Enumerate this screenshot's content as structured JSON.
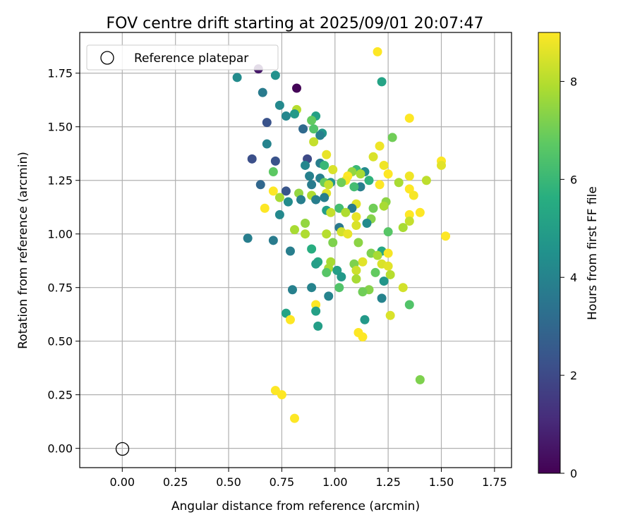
{
  "chart_data": {
    "type": "scatter",
    "title": "FOV centre drift starting at 2025/09/01 20:07:47",
    "xlabel": "Angular distance from reference (arcmin)",
    "ylabel": "Rotation from reference (arcmin)",
    "xlim": [
      -0.2,
      1.83
    ],
    "ylim": [
      -0.09,
      1.94
    ],
    "xticks": [
      "0.00",
      "0.25",
      "0.50",
      "0.75",
      "1.00",
      "1.25",
      "1.50",
      "1.75"
    ],
    "yticks": [
      "0.00",
      "0.25",
      "0.50",
      "0.75",
      "1.00",
      "1.25",
      "1.50",
      "1.75"
    ],
    "grid": true,
    "legend": {
      "placement": "top-left",
      "entries": [
        "Reference platepar"
      ]
    },
    "reference_point": {
      "x": 0.0,
      "y": 0.0,
      "label": "Reference platepar"
    },
    "colorbar": {
      "label": "Hours from first FF file",
      "min": 0,
      "max": 9,
      "ticks": [
        "0",
        "2",
        "4",
        "6",
        "8"
      ],
      "colormap": "viridis"
    },
    "colors": {
      "grid": "#b0b0b0",
      "axes": "#000000",
      "reference_marker": "#000000"
    },
    "points": [
      {
        "x": 1.2,
        "y": 1.85,
        "c": 9.0
      },
      {
        "x": 0.64,
        "y": 1.77,
        "c": 0.6
      },
      {
        "x": 0.72,
        "y": 1.74,
        "c": 4.5
      },
      {
        "x": 0.54,
        "y": 1.73,
        "c": 4.3
      },
      {
        "x": 1.22,
        "y": 1.71,
        "c": 5.2
      },
      {
        "x": 0.82,
        "y": 1.68,
        "c": 0.1
      },
      {
        "x": 0.66,
        "y": 1.66,
        "c": 3.7
      },
      {
        "x": 0.74,
        "y": 1.6,
        "c": 4.2
      },
      {
        "x": 0.82,
        "y": 1.58,
        "c": 8.0
      },
      {
        "x": 0.81,
        "y": 1.56,
        "c": 4.8
      },
      {
        "x": 0.77,
        "y": 1.55,
        "c": 4.1
      },
      {
        "x": 0.91,
        "y": 1.55,
        "c": 5.1
      },
      {
        "x": 1.35,
        "y": 1.54,
        "c": 9.0
      },
      {
        "x": 0.89,
        "y": 1.53,
        "c": 6.8
      },
      {
        "x": 0.68,
        "y": 1.52,
        "c": 2.3
      },
      {
        "x": 0.85,
        "y": 1.49,
        "c": 3.1
      },
      {
        "x": 0.9,
        "y": 1.49,
        "c": 6.5
      },
      {
        "x": 0.94,
        "y": 1.47,
        "c": 4.7
      },
      {
        "x": 0.93,
        "y": 1.46,
        "c": 3.9
      },
      {
        "x": 1.27,
        "y": 1.45,
        "c": 7.0
      },
      {
        "x": 0.9,
        "y": 1.43,
        "c": 8.2
      },
      {
        "x": 0.68,
        "y": 1.42,
        "c": 4.0
      },
      {
        "x": 1.21,
        "y": 1.41,
        "c": 8.8
      },
      {
        "x": 0.96,
        "y": 1.37,
        "c": 8.7
      },
      {
        "x": 1.18,
        "y": 1.36,
        "c": 8.5
      },
      {
        "x": 0.61,
        "y": 1.35,
        "c": 2.2
      },
      {
        "x": 0.72,
        "y": 1.34,
        "c": 2.3
      },
      {
        "x": 0.87,
        "y": 1.35,
        "c": 2.0
      },
      {
        "x": 1.5,
        "y": 1.34,
        "c": 9.0
      },
      {
        "x": 0.93,
        "y": 1.33,
        "c": 3.8
      },
      {
        "x": 0.86,
        "y": 1.32,
        "c": 4.1
      },
      {
        "x": 0.95,
        "y": 1.32,
        "c": 6.0
      },
      {
        "x": 1.23,
        "y": 1.32,
        "c": 8.8
      },
      {
        "x": 1.5,
        "y": 1.32,
        "c": 8.6
      },
      {
        "x": 0.71,
        "y": 1.29,
        "c": 6.7
      },
      {
        "x": 0.99,
        "y": 1.3,
        "c": 8.5
      },
      {
        "x": 1.1,
        "y": 1.3,
        "c": 6.0
      },
      {
        "x": 1.08,
        "y": 1.29,
        "c": 7.5
      },
      {
        "x": 1.14,
        "y": 1.29,
        "c": 4.3
      },
      {
        "x": 1.12,
        "y": 1.28,
        "c": 7.8
      },
      {
        "x": 1.25,
        "y": 1.28,
        "c": 9.0
      },
      {
        "x": 1.06,
        "y": 1.27,
        "c": 9.0
      },
      {
        "x": 0.88,
        "y": 1.27,
        "c": 3.9
      },
      {
        "x": 1.35,
        "y": 1.27,
        "c": 8.8
      },
      {
        "x": 0.93,
        "y": 1.26,
        "c": 3.9
      },
      {
        "x": 1.16,
        "y": 1.25,
        "c": 5.8
      },
      {
        "x": 1.05,
        "y": 1.25,
        "c": 8.9
      },
      {
        "x": 1.43,
        "y": 1.25,
        "c": 8.1
      },
      {
        "x": 0.95,
        "y": 1.24,
        "c": 6.9
      },
      {
        "x": 0.98,
        "y": 1.24,
        "c": 4.6
      },
      {
        "x": 1.03,
        "y": 1.24,
        "c": 7.0
      },
      {
        "x": 1.3,
        "y": 1.24,
        "c": 7.8
      },
      {
        "x": 0.97,
        "y": 1.23,
        "c": 8.2
      },
      {
        "x": 0.89,
        "y": 1.23,
        "c": 3.7
      },
      {
        "x": 1.12,
        "y": 1.22,
        "c": 3.8
      },
      {
        "x": 0.65,
        "y": 1.23,
        "c": 3.0
      },
      {
        "x": 1.09,
        "y": 1.22,
        "c": 6.2
      },
      {
        "x": 1.21,
        "y": 1.23,
        "c": 9.0
      },
      {
        "x": 1.35,
        "y": 1.21,
        "c": 9.0
      },
      {
        "x": 0.77,
        "y": 1.2,
        "c": 2.4
      },
      {
        "x": 0.71,
        "y": 1.2,
        "c": 9.0
      },
      {
        "x": 0.83,
        "y": 1.19,
        "c": 7.5
      },
      {
        "x": 0.96,
        "y": 1.19,
        "c": 8.6
      },
      {
        "x": 0.89,
        "y": 1.18,
        "c": 7.9
      },
      {
        "x": 1.37,
        "y": 1.18,
        "c": 8.9
      },
      {
        "x": 0.74,
        "y": 1.17,
        "c": 7.8
      },
      {
        "x": 0.95,
        "y": 1.17,
        "c": 3.8
      },
      {
        "x": 0.91,
        "y": 1.16,
        "c": 3.8
      },
      {
        "x": 0.84,
        "y": 1.16,
        "c": 3.8
      },
      {
        "x": 0.78,
        "y": 1.15,
        "c": 4.3
      },
      {
        "x": 1.24,
        "y": 1.15,
        "c": 7.4
      },
      {
        "x": 1.1,
        "y": 1.14,
        "c": 8.6
      },
      {
        "x": 0.67,
        "y": 1.12,
        "c": 9.0
      },
      {
        "x": 1.23,
        "y": 1.13,
        "c": 7.8
      },
      {
        "x": 1.02,
        "y": 1.12,
        "c": 6.2
      },
      {
        "x": 1.08,
        "y": 1.12,
        "c": 3.7
      },
      {
        "x": 1.18,
        "y": 1.12,
        "c": 7.0
      },
      {
        "x": 0.96,
        "y": 1.11,
        "c": 5.0
      },
      {
        "x": 1.05,
        "y": 1.1,
        "c": 7.9
      },
      {
        "x": 0.98,
        "y": 1.1,
        "c": 8.2
      },
      {
        "x": 1.4,
        "y": 1.1,
        "c": 9.0
      },
      {
        "x": 1.35,
        "y": 1.09,
        "c": 9.0
      },
      {
        "x": 0.74,
        "y": 1.09,
        "c": 4.2
      },
      {
        "x": 1.1,
        "y": 1.08,
        "c": 8.7
      },
      {
        "x": 1.17,
        "y": 1.07,
        "c": 7.3
      },
      {
        "x": 1.35,
        "y": 1.06,
        "c": 8.2
      },
      {
        "x": 0.86,
        "y": 1.05,
        "c": 7.5
      },
      {
        "x": 1.15,
        "y": 1.05,
        "c": 4.3
      },
      {
        "x": 1.1,
        "y": 1.04,
        "c": 8.5
      },
      {
        "x": 1.02,
        "y": 1.03,
        "c": 3.6
      },
      {
        "x": 1.32,
        "y": 1.03,
        "c": 7.8
      },
      {
        "x": 0.81,
        "y": 1.02,
        "c": 7.8
      },
      {
        "x": 1.25,
        "y": 1.01,
        "c": 6.6
      },
      {
        "x": 1.03,
        "y": 1.01,
        "c": 8.4
      },
      {
        "x": 1.06,
        "y": 1.0,
        "c": 8.7
      },
      {
        "x": 0.86,
        "y": 1.0,
        "c": 7.9
      },
      {
        "x": 0.96,
        "y": 1.0,
        "c": 8.0
      },
      {
        "x": 1.52,
        "y": 0.99,
        "c": 9.0
      },
      {
        "x": 0.59,
        "y": 0.98,
        "c": 3.8
      },
      {
        "x": 0.71,
        "y": 0.97,
        "c": 3.7
      },
      {
        "x": 0.99,
        "y": 0.96,
        "c": 7.2
      },
      {
        "x": 1.11,
        "y": 0.96,
        "c": 7.4
      },
      {
        "x": 0.89,
        "y": 0.93,
        "c": 5.6
      },
      {
        "x": 0.79,
        "y": 0.92,
        "c": 3.8
      },
      {
        "x": 1.22,
        "y": 0.92,
        "c": 5.3
      },
      {
        "x": 1.25,
        "y": 0.91,
        "c": 8.9
      },
      {
        "x": 1.17,
        "y": 0.91,
        "c": 7.2
      },
      {
        "x": 1.2,
        "y": 0.9,
        "c": 7.8
      },
      {
        "x": 0.92,
        "y": 0.87,
        "c": 5.4
      },
      {
        "x": 0.98,
        "y": 0.87,
        "c": 7.8
      },
      {
        "x": 1.13,
        "y": 0.87,
        "c": 8.6
      },
      {
        "x": 0.91,
        "y": 0.86,
        "c": 5.0
      },
      {
        "x": 1.09,
        "y": 0.86,
        "c": 7.2
      },
      {
        "x": 1.22,
        "y": 0.86,
        "c": 8.5
      },
      {
        "x": 1.25,
        "y": 0.85,
        "c": 8.6
      },
      {
        "x": 0.97,
        "y": 0.84,
        "c": 7.8
      },
      {
        "x": 0.96,
        "y": 0.82,
        "c": 6.6
      },
      {
        "x": 1.1,
        "y": 0.83,
        "c": 8.3
      },
      {
        "x": 1.01,
        "y": 0.83,
        "c": 5.0
      },
      {
        "x": 1.19,
        "y": 0.82,
        "c": 6.8
      },
      {
        "x": 1.26,
        "y": 0.81,
        "c": 8.0
      },
      {
        "x": 1.03,
        "y": 0.8,
        "c": 4.8
      },
      {
        "x": 1.23,
        "y": 0.78,
        "c": 4.7
      },
      {
        "x": 1.1,
        "y": 0.79,
        "c": 7.8
      },
      {
        "x": 0.89,
        "y": 0.75,
        "c": 4.0
      },
      {
        "x": 1.16,
        "y": 0.74,
        "c": 7.3
      },
      {
        "x": 0.8,
        "y": 0.74,
        "c": 3.9
      },
      {
        "x": 1.02,
        "y": 0.75,
        "c": 6.5
      },
      {
        "x": 1.32,
        "y": 0.75,
        "c": 8.4
      },
      {
        "x": 1.13,
        "y": 0.73,
        "c": 7.0
      },
      {
        "x": 0.97,
        "y": 0.71,
        "c": 4.0
      },
      {
        "x": 1.22,
        "y": 0.7,
        "c": 4.0
      },
      {
        "x": 0.91,
        "y": 0.67,
        "c": 9.0
      },
      {
        "x": 1.35,
        "y": 0.67,
        "c": 6.5
      },
      {
        "x": 0.91,
        "y": 0.64,
        "c": 5.1
      },
      {
        "x": 0.77,
        "y": 0.63,
        "c": 5.2
      },
      {
        "x": 1.26,
        "y": 0.62,
        "c": 8.5
      },
      {
        "x": 0.79,
        "y": 0.6,
        "c": 9.0
      },
      {
        "x": 1.14,
        "y": 0.6,
        "c": 4.8
      },
      {
        "x": 0.92,
        "y": 0.57,
        "c": 5.0
      },
      {
        "x": 1.11,
        "y": 0.54,
        "c": 9.0
      },
      {
        "x": 1.13,
        "y": 0.52,
        "c": 9.0
      },
      {
        "x": 1.4,
        "y": 0.32,
        "c": 7.2
      },
      {
        "x": 0.72,
        "y": 0.27,
        "c": 9.0
      },
      {
        "x": 0.75,
        "y": 0.25,
        "c": 9.0
      },
      {
        "x": 0.81,
        "y": 0.14,
        "c": 9.0
      }
    ]
  }
}
